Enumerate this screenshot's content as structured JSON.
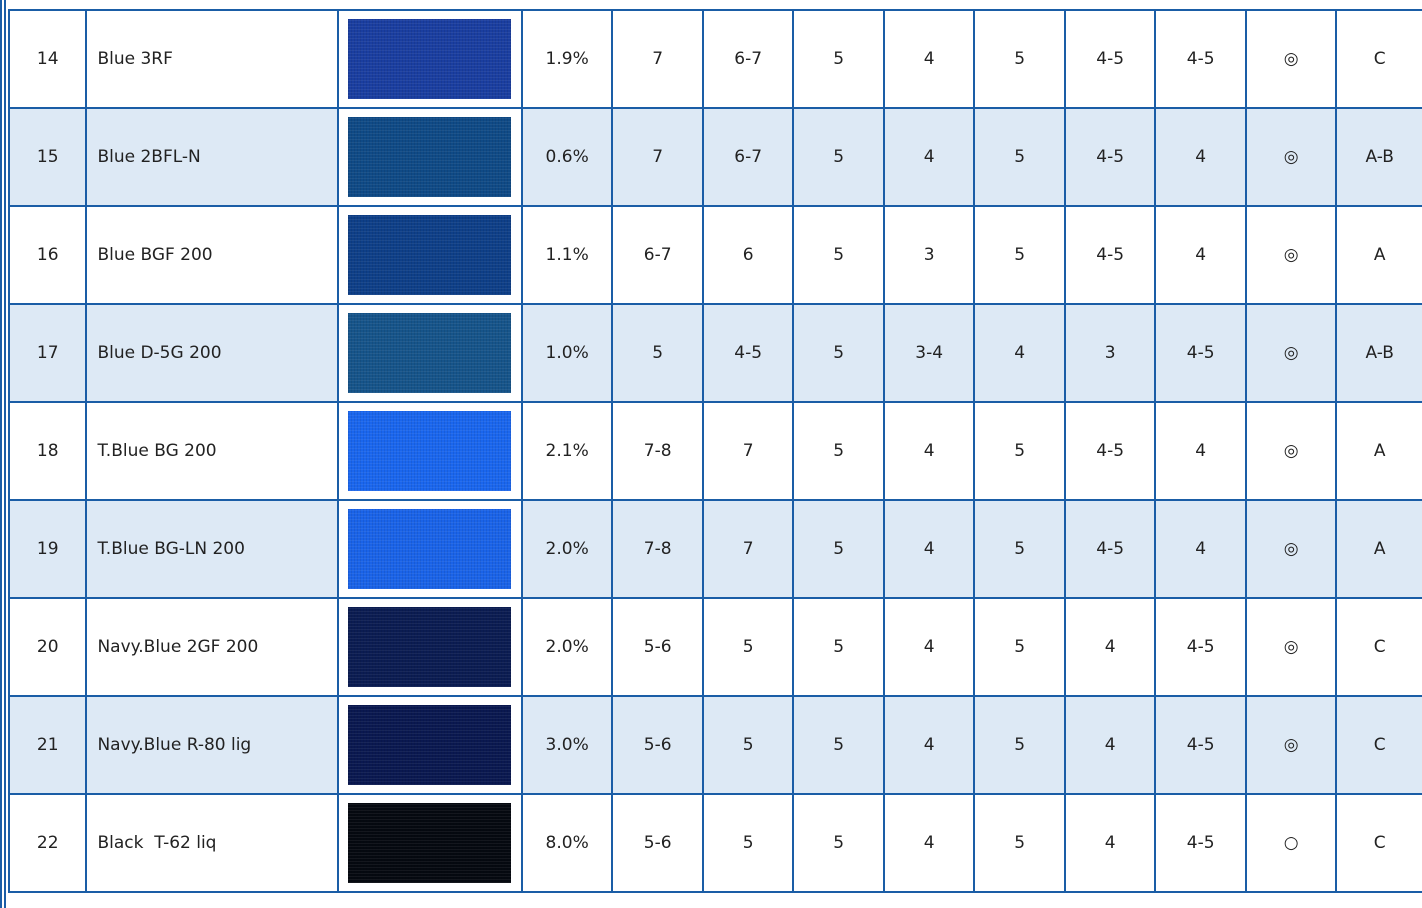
{
  "table": {
    "rows": [
      [
        "14",
        "Blue 3RF",
        "1.9%",
        "7",
        "6-7",
        "5",
        "4",
        "5",
        "4-5",
        "4-5",
        "◎",
        "C"
      ],
      [
        "15",
        "Blue 2BFL-N",
        "0.6%",
        "7",
        "6-7",
        "5",
        "4",
        "5",
        "4-5",
        "4",
        "◎",
        "A-B"
      ],
      [
        "16",
        "Blue BGF 200",
        "1.1%",
        "6-7",
        "6",
        "5",
        "3",
        "5",
        "4-5",
        "4",
        "◎",
        "A"
      ],
      [
        "17",
        "Blue D-5G 200",
        "1.0%",
        "5",
        "4-5",
        "5",
        "3-4",
        "4",
        "3",
        "4-5",
        "◎",
        "A-B"
      ],
      [
        "18",
        "T.Blue BG 200",
        "2.1%",
        "7-8",
        "7",
        "5",
        "4",
        "5",
        "4-5",
        "4",
        "◎",
        "A"
      ],
      [
        "19",
        "T.Blue BG-LN 200",
        "2.0%",
        "7-8",
        "7",
        "5",
        "4",
        "5",
        "4-5",
        "4",
        "◎",
        "A"
      ],
      [
        "20",
        "Navy.Blue 2GF 200",
        "2.0%",
        "5-6",
        "5",
        "5",
        "4",
        "5",
        "4",
        "4-5",
        "◎",
        "C"
      ],
      [
        "21",
        "Navy.Blue R-80 lig",
        "3.0%",
        "5-6",
        "5",
        "5",
        "4",
        "5",
        "4",
        "4-5",
        "◎",
        "C"
      ],
      [
        "22",
        "Black  T-62 liq",
        "8.0%",
        "5-6",
        "5",
        "5",
        "4",
        "5",
        "4",
        "4-5",
        "○",
        "C"
      ]
    ]
  }
}
